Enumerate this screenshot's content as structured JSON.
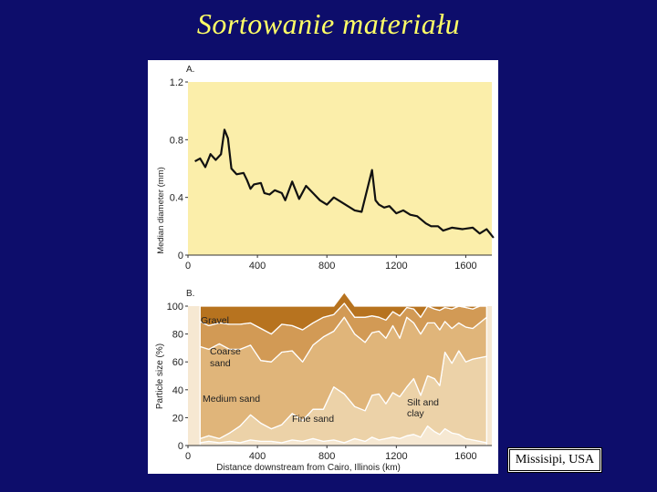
{
  "title": "Sortowanie materiału",
  "caption": "Missisipi, USA",
  "colors": {
    "background": "#0d0d6b",
    "title": "#ffff66",
    "panel_a_fill": "#fbeeaa",
    "gravel": "#b7731f",
    "coarse_sand": "#d29a55",
    "medium_sand": "#e0b57a",
    "fine_sand": "#ecd2a8",
    "silt_clay": "#f6e8d2"
  },
  "chart_data": [
    {
      "type": "line",
      "panel_label": "A.",
      "xlabel": "",
      "ylabel": "Median diameter (mm)",
      "xlim": [
        0,
        1750
      ],
      "ylim": [
        0,
        1.2
      ],
      "xticks": [
        "0",
        "400",
        "800",
        "1200",
        "1600"
      ],
      "yticks": [
        "0",
        "0.4",
        "0.8",
        "1.2"
      ],
      "series": [
        {
          "x": [
            40,
            70,
            100,
            130,
            160,
            190,
            210,
            230,
            250,
            280,
            320,
            340,
            360,
            380,
            420,
            440,
            470,
            500,
            540,
            560,
            600,
            640,
            680,
            720,
            760,
            800,
            840,
            880,
            920,
            960,
            1000,
            1060,
            1080,
            1100,
            1130,
            1160,
            1200,
            1240,
            1280,
            1320,
            1370,
            1400,
            1440,
            1470,
            1520,
            1580,
            1640,
            1680,
            1720,
            1760
          ],
          "y": [
            0.65,
            0.67,
            0.61,
            0.7,
            0.66,
            0.7,
            0.87,
            0.81,
            0.6,
            0.56,
            0.57,
            0.52,
            0.46,
            0.49,
            0.5,
            0.43,
            0.42,
            0.45,
            0.43,
            0.38,
            0.51,
            0.39,
            0.48,
            0.43,
            0.38,
            0.35,
            0.4,
            0.37,
            0.34,
            0.31,
            0.3,
            0.59,
            0.38,
            0.35,
            0.33,
            0.34,
            0.29,
            0.31,
            0.28,
            0.27,
            0.22,
            0.2,
            0.2,
            0.17,
            0.19,
            0.18,
            0.19,
            0.15,
            0.18,
            0.12
          ]
        }
      ]
    },
    {
      "type": "area",
      "panel_label": "B.",
      "xlabel": "Distance downstream from Cairo, Illinois (km)",
      "ylabel": "Particle size (%)",
      "xlim": [
        0,
        1750
      ],
      "ylim": [
        0,
        100
      ],
      "xticks": [
        "0",
        "400",
        "800",
        "1200",
        "1600"
      ],
      "yticks": [
        "0",
        "20",
        "40",
        "60",
        "80",
        "100"
      ],
      "x": [
        70,
        120,
        180,
        240,
        300,
        360,
        420,
        480,
        540,
        600,
        660,
        720,
        780,
        840,
        900,
        960,
        1020,
        1060,
        1100,
        1140,
        1180,
        1220,
        1260,
        1300,
        1340,
        1380,
        1420,
        1450,
        1480,
        1520,
        1560,
        1600,
        1640,
        1680,
        1720
      ],
      "series": [
        {
          "name": "Silt and clay",
          "values": [
            2,
            3,
            2,
            3,
            2,
            4,
            3,
            3,
            2,
            4,
            3,
            5,
            3,
            4,
            2,
            5,
            3,
            6,
            4,
            5,
            6,
            5,
            7,
            8,
            6,
            14,
            10,
            8,
            12,
            9,
            8,
            5,
            4,
            3,
            2
          ]
        },
        {
          "name": "Fine sand",
          "values": [
            3,
            4,
            3,
            6,
            12,
            18,
            13,
            9,
            13,
            19,
            15,
            21,
            23,
            38,
            35,
            23,
            22,
            30,
            33,
            25,
            32,
            30,
            35,
            40,
            30,
            36,
            38,
            35,
            55,
            50,
            60,
            55,
            58,
            60,
            62
          ]
        },
        {
          "name": "Medium sand",
          "values": [
            66,
            62,
            68,
            60,
            55,
            50,
            45,
            48,
            52,
            45,
            42,
            46,
            52,
            40,
            55,
            52,
            49,
            45,
            45,
            47,
            48,
            42,
            50,
            40,
            44,
            38,
            40,
            40,
            22,
            25,
            20,
            25,
            22,
            25,
            28
          ]
        },
        {
          "name": "Coarse sand",
          "values": [
            18,
            17,
            15,
            18,
            18,
            16,
            23,
            20,
            20,
            18,
            23,
            16,
            14,
            12,
            10,
            12,
            18,
            12,
            10,
            13,
            10,
            16,
            7,
            10,
            12,
            12,
            10,
            14,
            10,
            14,
            12,
            14,
            14,
            12,
            8
          ]
        },
        {
          "name": "Gravel",
          "values": [
            11,
            14,
            12,
            13,
            13,
            12,
            16,
            20,
            13,
            14,
            17,
            12,
            8,
            6,
            8,
            8,
            8,
            7,
            8,
            10,
            4,
            7,
            1,
            2,
            8,
            0,
            2,
            3,
            1,
            2,
            0,
            1,
            2,
            0,
            0
          ]
        }
      ],
      "annotations": [
        "Gravel",
        "Coarse",
        "sand",
        "Medium sand",
        "Fine sand",
        "Silt and",
        "clay"
      ]
    }
  ]
}
